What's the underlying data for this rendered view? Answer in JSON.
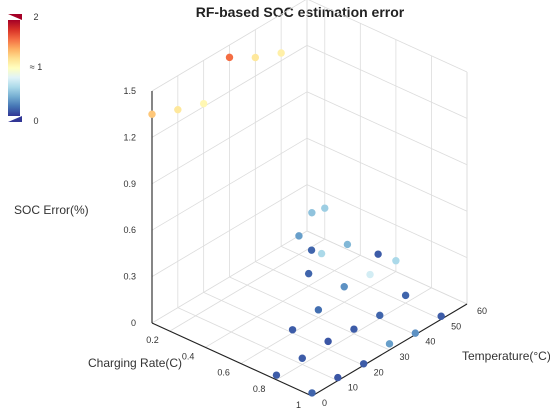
{
  "chart_data": {
    "type": "scatter",
    "title": "RF-based SOC estimation error",
    "xlabel": "Charging Rate(C)",
    "ylabel": "Temperature(°C)",
    "zlabel": "SOC Error(%)",
    "xlim": [
      0.1,
      1
    ],
    "ylim": [
      0,
      60
    ],
    "zlim": [
      0,
      1.5
    ],
    "x_ticks": [
      "0.2",
      "0.4",
      "0.6",
      "0.8",
      "1"
    ],
    "y_ticks": [
      "0",
      "10",
      "20",
      "30",
      "40",
      "50",
      "60"
    ],
    "z_ticks": [
      "0",
      "0.3",
      "0.6",
      "0.9",
      "1.2",
      "1.5"
    ],
    "grid": true,
    "colorscale": [
      "#313695",
      "#4575b4",
      "#74add1",
      "#abd9e9",
      "#e0f3f8",
      "#ffffbf",
      "#fee090",
      "#fdae61",
      "#f46d43",
      "#d73027",
      "#a50026"
    ],
    "visual_map": {
      "min": 0,
      "max": 2,
      "min_label": "0",
      "mid_label": "≈ 1",
      "max_label": "2"
    },
    "points": [
      {
        "x": 0.1,
        "y": 0,
        "z": 1.35,
        "c": 1.3
      },
      {
        "x": 0.1,
        "y": 10,
        "z": 1.28,
        "c": 1.15
      },
      {
        "x": 0.1,
        "y": 20,
        "z": 1.22,
        "c": 1.05
      },
      {
        "x": 0.1,
        "y": 30,
        "z": 1.42,
        "c": 1.6
      },
      {
        "x": 0.1,
        "y": 40,
        "z": 1.32,
        "c": 1.15
      },
      {
        "x": 0.1,
        "y": 50,
        "z": 1.25,
        "c": 1.1
      },
      {
        "x": 0.2,
        "y": 50,
        "z": 0.12,
        "c": 0.35
      },
      {
        "x": 0.2,
        "y": 55,
        "z": 0.22,
        "c": 0.5
      },
      {
        "x": 0.2,
        "y": 60,
        "z": 0.2,
        "c": 0.55
      },
      {
        "x": 0.3,
        "y": 48,
        "z": 0.1,
        "c": 0.15
      },
      {
        "x": 0.4,
        "y": 40,
        "z": 0.08,
        "c": 0.15
      },
      {
        "x": 0.4,
        "y": 45,
        "z": 0.16,
        "c": 0.6
      },
      {
        "x": 0.4,
        "y": 55,
        "z": 0.12,
        "c": 0.45
      },
      {
        "x": 0.5,
        "y": 60,
        "z": 0.06,
        "c": 0.12
      },
      {
        "x": 0.6,
        "y": 20,
        "z": 0.02,
        "c": 0.12
      },
      {
        "x": 0.6,
        "y": 30,
        "z": 0.05,
        "c": 0.18
      },
      {
        "x": 0.6,
        "y": 40,
        "z": 0.1,
        "c": 0.3
      },
      {
        "x": 0.6,
        "y": 50,
        "z": 0.08,
        "c": 0.75
      },
      {
        "x": 0.6,
        "y": 60,
        "z": 0.07,
        "c": 0.6
      },
      {
        "x": 0.8,
        "y": 0,
        "z": 0.03,
        "c": 0.12
      },
      {
        "x": 0.8,
        "y": 10,
        "z": 0.04,
        "c": 0.12
      },
      {
        "x": 0.8,
        "y": 20,
        "z": 0.05,
        "c": 0.1
      },
      {
        "x": 0.8,
        "y": 30,
        "z": 0.03,
        "c": 0.12
      },
      {
        "x": 0.8,
        "y": 40,
        "z": 0.02,
        "c": 0.15
      },
      {
        "x": 0.8,
        "y": 50,
        "z": 0.05,
        "c": 0.15
      },
      {
        "x": 1.0,
        "y": 0,
        "z": 0.02,
        "c": 0.15
      },
      {
        "x": 1.0,
        "y": 10,
        "z": 0.02,
        "c": 0.1
      },
      {
        "x": 1.0,
        "y": 20,
        "z": 0.01,
        "c": 0.12
      },
      {
        "x": 1.0,
        "y": 30,
        "z": 0.04,
        "c": 0.35
      },
      {
        "x": 1.0,
        "y": 40,
        "z": 0.01,
        "c": 0.3
      },
      {
        "x": 1.0,
        "y": 50,
        "z": 0.02,
        "c": 0.12
      }
    ]
  }
}
